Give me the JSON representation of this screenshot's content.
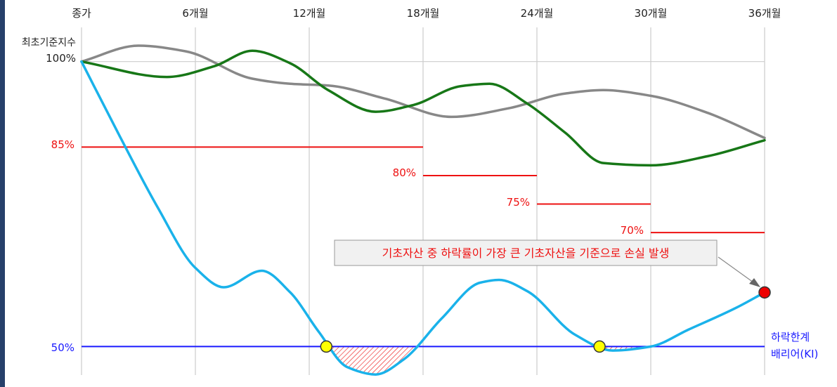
{
  "chart_data": {
    "type": "line",
    "x_ticks": [
      "종가",
      "6개월",
      "12개월",
      "18개월",
      "24개월",
      "30개월",
      "36개월"
    ],
    "x_range": [
      0,
      36
    ],
    "ylabel": "최초기준지수",
    "y_start_label": "100%",
    "y_range": [
      45,
      106
    ],
    "grid": "vertical gridlines at each 6 months; horizontal line at 100%",
    "series": [
      {
        "color": "#888888",
        "points": [
          [
            0,
            100
          ],
          [
            3,
            102.8
          ],
          [
            5.5,
            101.8
          ],
          [
            9,
            97
          ],
          [
            11,
            96.1
          ],
          [
            13,
            95.8
          ],
          [
            16,
            93.5
          ],
          [
            19.5,
            90.3
          ],
          [
            22.5,
            91.8
          ],
          [
            25.5,
            94.4
          ],
          [
            27.5,
            95
          ],
          [
            30,
            94
          ],
          [
            33,
            91
          ],
          [
            36,
            86.6
          ]
        ]
      },
      {
        "color": "#177717",
        "points": [
          [
            0,
            100
          ],
          [
            4.5,
            97.3
          ],
          [
            7,
            99.2
          ],
          [
            9,
            101.9
          ],
          [
            11,
            99.7
          ],
          [
            13,
            95
          ],
          [
            15.5,
            91.2
          ],
          [
            17.5,
            92.4
          ],
          [
            20,
            95.7
          ],
          [
            21.5,
            96.1
          ],
          [
            23.5,
            92.6
          ],
          [
            25.5,
            87.5
          ],
          [
            27.5,
            82.2
          ],
          [
            30,
            81.8
          ],
          [
            33,
            83.4
          ],
          [
            36,
            86.2
          ]
        ]
      },
      {
        "color": "#1ab2ea",
        "points": [
          [
            0,
            100
          ],
          [
            2,
            87
          ],
          [
            4,
            74.5
          ],
          [
            6,
            63.8
          ],
          [
            7.5,
            60.4
          ],
          [
            9.5,
            63.3
          ],
          [
            11,
            59.5
          ],
          [
            12.5,
            52.6
          ],
          [
            14,
            46.4
          ],
          [
            15.5,
            45.1
          ],
          [
            17,
            47.8
          ],
          [
            19,
            55
          ],
          [
            21,
            61.2
          ],
          [
            22,
            61.7
          ],
          [
            23.5,
            59.7
          ],
          [
            26,
            52.1
          ],
          [
            28,
            49.3
          ],
          [
            30,
            50
          ],
          [
            32,
            53
          ],
          [
            34.5,
            56.8
          ],
          [
            36,
            59.5
          ]
        ]
      }
    ],
    "reference_levels": [
      {
        "label": "85%",
        "value": 85,
        "x_start": 0,
        "x_end": 18,
        "color": "#ee1111"
      },
      {
        "label": "80%",
        "value": 80,
        "x_start": 18,
        "x_end": 24,
        "color": "#ee1111"
      },
      {
        "label": "75%",
        "value": 75,
        "x_start": 24,
        "x_end": 30,
        "color": "#ee1111"
      },
      {
        "label": "70%",
        "value": 70,
        "x_start": 30,
        "x_end": 36,
        "color": "#ee1111"
      }
    ],
    "barrier": {
      "label": "50%",
      "value": 50,
      "name_line1": "하락한계",
      "name_line2": "배리어(KI)",
      "color": "#1a1aff"
    },
    "barrier_touch_points": [
      [
        12.9,
        50
      ],
      [
        27.3,
        50
      ]
    ],
    "shaded_regions": [
      [
        12.9,
        17.8
      ],
      [
        27.3,
        31.7
      ]
    ],
    "loss_point": [
      36,
      59.5
    ],
    "annotation": "기초자산 중 하락률이 가장 큰 기초자산을 기준으로 손실 발생"
  }
}
